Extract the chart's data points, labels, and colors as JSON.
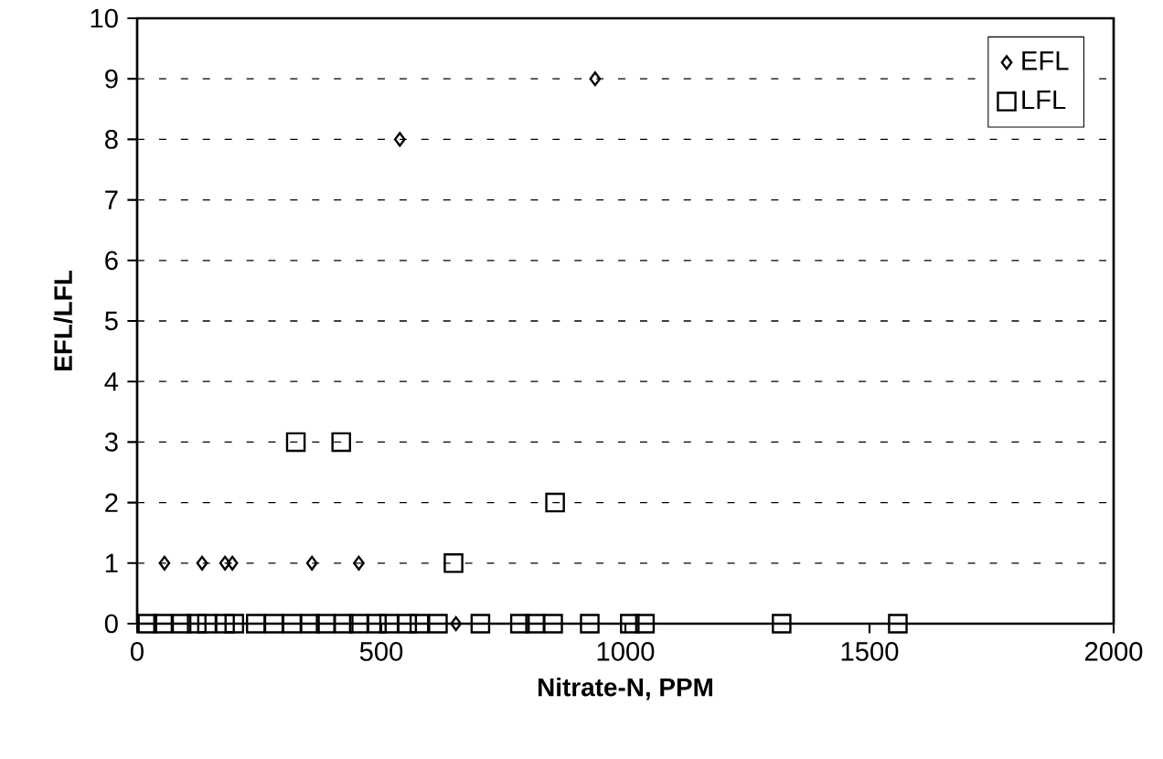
{
  "chart_data": {
    "type": "scatter",
    "xlabel": "Nitrate-N, PPM",
    "ylabel": "EFL/LFL",
    "series": [
      {
        "name": "EFL",
        "color": "#000000",
        "marker": "diamond",
        "x": [
          56,
          133,
          180,
          195,
          358,
          454,
          538,
          938,
          653
        ],
        "values": [
          1,
          1,
          1,
          1,
          1,
          1,
          8,
          9,
          0
        ]
      },
      {
        "name": "LFL",
        "color": "#000000",
        "marker": "square",
        "x": [
          325,
          418,
          856,
          648,
          21,
          53,
          91,
          122,
          143,
          180,
          199,
          243,
          280,
          317,
          354,
          386,
          423,
          454,
          491,
          516,
          553,
          578,
          616,
          703,
          784,
          815,
          852,
          927,
          1009,
          1040,
          1320,
          1558
        ],
        "values": [
          3,
          3,
          2,
          1,
          0,
          0,
          0,
          0,
          0,
          0,
          0,
          0,
          0,
          0,
          0,
          0,
          0,
          0,
          0,
          0,
          0,
          0,
          0,
          0,
          0,
          0,
          0,
          0,
          0,
          0,
          0,
          0
        ]
      }
    ],
    "xlim": [
      0,
      2000
    ],
    "xticks": [
      0,
      500,
      1000,
      1500,
      2000
    ],
    "ylim": [
      0,
      10
    ],
    "yticks": [
      0,
      1,
      2,
      3,
      4,
      5,
      6,
      7,
      8,
      9,
      10
    ],
    "grid": "y",
    "legend": "top right"
  }
}
